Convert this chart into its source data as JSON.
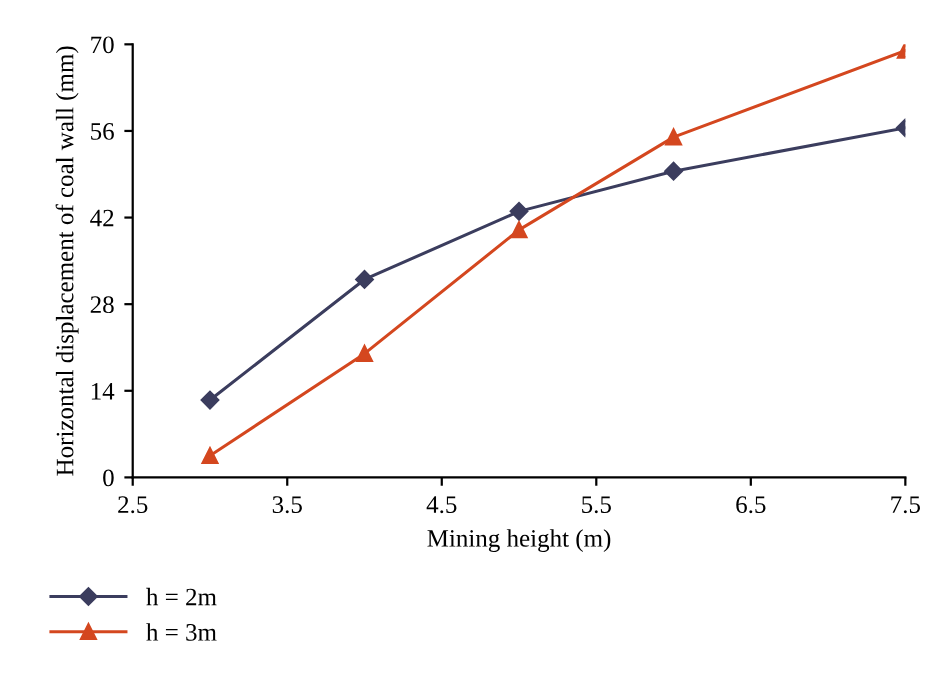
{
  "chart_data": {
    "type": "line",
    "xlabel": "Mining height (m)",
    "ylabel": "Horizontal displacement of coal wall (mm)",
    "xlim": [
      2.5,
      7.5
    ],
    "xticks": [
      2.5,
      3.5,
      4.5,
      5.5,
      6.5,
      7.5
    ],
    "ylim": [
      0,
      70
    ],
    "yticks": [
      0,
      14,
      28,
      42,
      56,
      70
    ],
    "grid": false,
    "legend": "bottom left",
    "line_style": "solid",
    "series": [
      {
        "name": "h = 2m",
        "color": "#3b3d5e",
        "marker": "diamond",
        "x": [
          3,
          4,
          5,
          6,
          7.5
        ],
        "values": [
          12.5,
          32,
          43,
          49.5,
          56.5
        ]
      },
      {
        "name": "h = 3m",
        "color": "#d4471f",
        "marker": "triangle",
        "x": [
          3,
          4,
          5,
          6,
          7.5
        ],
        "values": [
          3.5,
          20,
          40,
          55,
          69
        ]
      }
    ]
  }
}
